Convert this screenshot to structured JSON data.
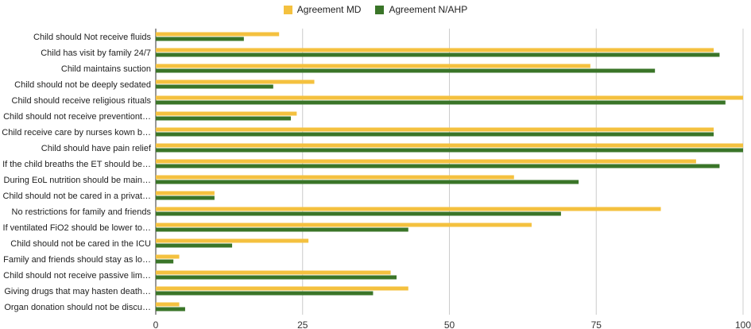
{
  "chart_data": {
    "type": "bar",
    "orientation": "horizontal",
    "categories": [
      "Child should Not receive fluids",
      "Child has visit by family 24/7",
      "Child maintains suction",
      "Child should not be deeply sedated",
      "Child should receive religious rituals",
      "Child should not receive preventiont…",
      "Child receive care by nurses kown b…",
      "Child should have pain relief",
      "If the child breaths the ET should be…",
      "During EoL nutrition should be main…",
      "Child should not be cared in a privat…",
      "No restrictions for family and friends",
      "If ventilated FiO2 should be lower to…",
      "Child should not be cared in the ICU",
      "Family and friends should stay as lo…",
      "Child should not receive passive lim…",
      "Giving drugs that may hasten death…",
      "Organ donation should not be discu…"
    ],
    "series": [
      {
        "name": "Agreement MD",
        "color": "#f4c13f",
        "values": [
          21,
          95,
          74,
          27,
          100,
          24,
          95,
          100,
          92,
          61,
          10,
          86,
          64,
          26,
          4,
          40,
          43,
          4
        ]
      },
      {
        "name": "Agreement N/AHP",
        "color": "#3a7528",
        "values": [
          15,
          96,
          85,
          20,
          97,
          23,
          95,
          100,
          96,
          72,
          10,
          69,
          43,
          13,
          3,
          41,
          37,
          5
        ]
      }
    ],
    "xlim": [
      0,
      100
    ],
    "xticks": [
      "0",
      "25",
      "50",
      "75",
      "100"
    ],
    "grid": true,
    "legend_position": "top-center"
  }
}
